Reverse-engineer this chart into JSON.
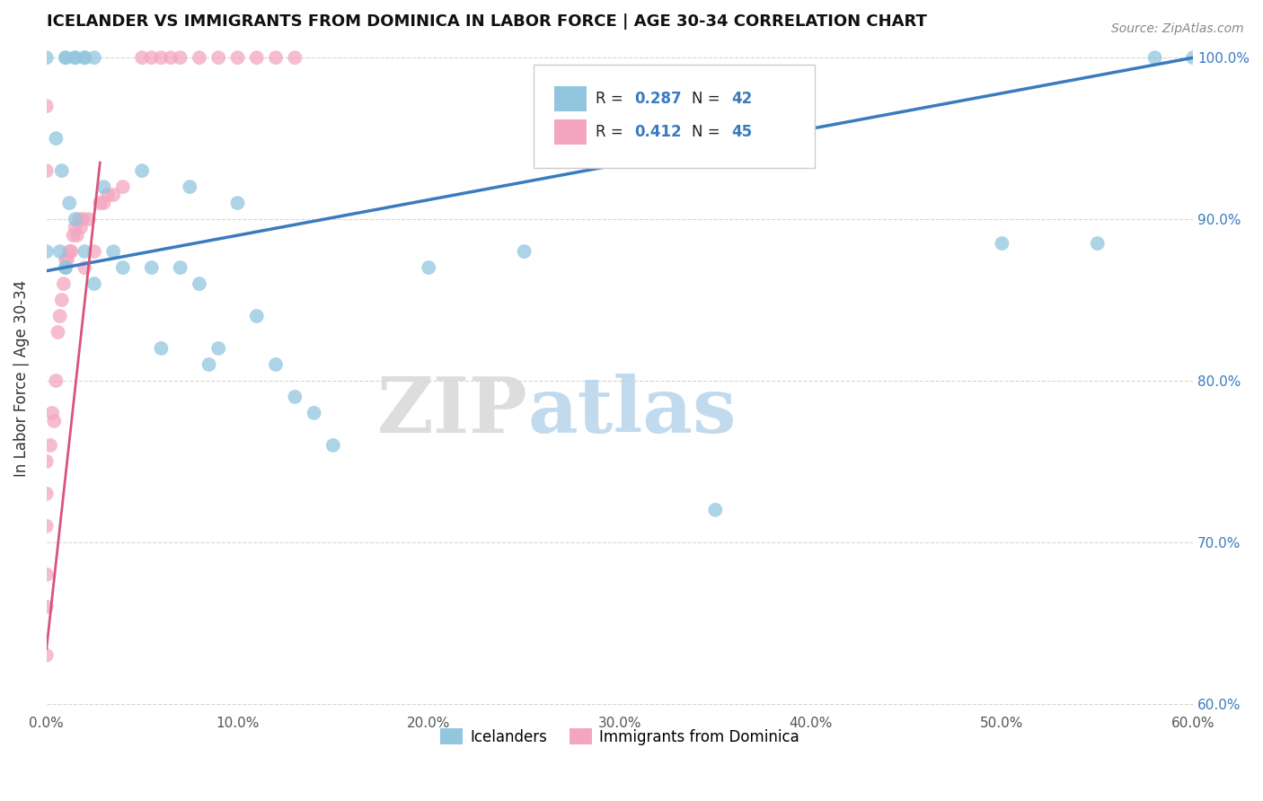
{
  "title": "ICELANDER VS IMMIGRANTS FROM DOMINICA IN LABOR FORCE | AGE 30-34 CORRELATION CHART",
  "source": "Source: ZipAtlas.com",
  "ylabel": "In Labor Force | Age 30-34",
  "xlim": [
    0.0,
    0.6
  ],
  "ylim": [
    0.595,
    1.008
  ],
  "xtick_labels": [
    "0.0%",
    "10.0%",
    "20.0%",
    "30.0%",
    "40.0%",
    "50.0%",
    "60.0%"
  ],
  "xtick_vals": [
    0.0,
    0.1,
    0.2,
    0.3,
    0.4,
    0.5,
    0.6
  ],
  "ytick_labels": [
    "60.0%",
    "70.0%",
    "80.0%",
    "90.0%",
    "100.0%"
  ],
  "ytick_vals": [
    0.6,
    0.7,
    0.8,
    0.9,
    1.0
  ],
  "blue_R": 0.287,
  "blue_N": 42,
  "pink_R": 0.412,
  "pink_N": 45,
  "blue_color": "#92c5de",
  "pink_color": "#f4a6c0",
  "blue_line_color": "#3a7bbf",
  "pink_line_color": "#d9537a",
  "watermark_zip": "ZIP",
  "watermark_atlas": "atlas",
  "blue_scatter_x": [
    0.0,
    0.0,
    0.005,
    0.007,
    0.008,
    0.01,
    0.01,
    0.01,
    0.01,
    0.012,
    0.015,
    0.015,
    0.015,
    0.02,
    0.02,
    0.02,
    0.025,
    0.025,
    0.03,
    0.035,
    0.04,
    0.05,
    0.055,
    0.06,
    0.07,
    0.075,
    0.08,
    0.085,
    0.09,
    0.1,
    0.11,
    0.12,
    0.13,
    0.14,
    0.15,
    0.2,
    0.25,
    0.35,
    0.5,
    0.55,
    0.58,
    0.6
  ],
  "blue_scatter_y": [
    1.0,
    0.88,
    0.95,
    0.88,
    0.93,
    1.0,
    1.0,
    0.87,
    0.87,
    0.91,
    1.0,
    1.0,
    0.9,
    1.0,
    1.0,
    0.88,
    1.0,
    0.86,
    0.92,
    0.88,
    0.87,
    0.93,
    0.87,
    0.82,
    0.87,
    0.92,
    0.86,
    0.81,
    0.82,
    0.91,
    0.84,
    0.81,
    0.79,
    0.78,
    0.76,
    0.87,
    0.88,
    0.72,
    0.885,
    0.885,
    1.0,
    1.0
  ],
  "pink_scatter_x": [
    0.0,
    0.0,
    0.0,
    0.0,
    0.0,
    0.0,
    0.0,
    0.0,
    0.002,
    0.003,
    0.004,
    0.005,
    0.006,
    0.007,
    0.008,
    0.009,
    0.01,
    0.011,
    0.012,
    0.013,
    0.014,
    0.015,
    0.016,
    0.017,
    0.018,
    0.019,
    0.02,
    0.022,
    0.025,
    0.028,
    0.03,
    0.032,
    0.035,
    0.04,
    0.05,
    0.055,
    0.06,
    0.065,
    0.07,
    0.08,
    0.09,
    0.1,
    0.11,
    0.12,
    0.13
  ],
  "pink_scatter_y": [
    0.63,
    0.66,
    0.68,
    0.71,
    0.73,
    0.75,
    0.97,
    0.93,
    0.76,
    0.78,
    0.775,
    0.8,
    0.83,
    0.84,
    0.85,
    0.86,
    0.875,
    0.875,
    0.88,
    0.88,
    0.89,
    0.895,
    0.89,
    0.9,
    0.895,
    0.9,
    0.87,
    0.9,
    0.88,
    0.91,
    0.91,
    0.915,
    0.915,
    0.92,
    1.0,
    1.0,
    1.0,
    1.0,
    1.0,
    1.0,
    1.0,
    1.0,
    1.0,
    1.0,
    1.0
  ],
  "blue_trend_x": [
    0.0,
    0.6
  ],
  "blue_trend_y": [
    0.868,
    1.0
  ],
  "pink_trend_x": [
    0.0,
    0.028
  ],
  "pink_trend_y": [
    0.634,
    0.935
  ]
}
